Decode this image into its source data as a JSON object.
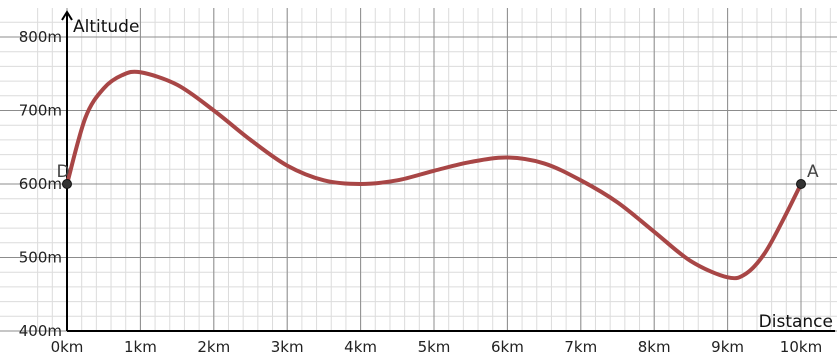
{
  "chart_data": {
    "type": "line",
    "xlabel": "Distance",
    "ylabel": "Altitude",
    "xlim": [
      0,
      10
    ],
    "ylim": [
      400,
      800
    ],
    "x_ticks": [
      0,
      1,
      2,
      3,
      4,
      5,
      6,
      7,
      8,
      9,
      10
    ],
    "x_tick_labels": [
      "0km",
      "1km",
      "2km",
      "3km",
      "4km",
      "5km",
      "6km",
      "7km",
      "8km",
      "9km",
      "10km"
    ],
    "y_ticks": [
      400,
      500,
      600,
      700,
      800
    ],
    "y_tick_labels": [
      "400m",
      "500m",
      "600m",
      "700m",
      "800m"
    ],
    "grid": true,
    "series": [
      {
        "color": "#a84646",
        "x": [
          0,
          0.25,
          0.5,
          0.75,
          1,
          1.5,
          2,
          2.5,
          3,
          3.5,
          4,
          4.5,
          5,
          5.5,
          6,
          6.5,
          7,
          7.5,
          8,
          8.5,
          9,
          9.25,
          9.5,
          9.75,
          10
        ],
        "y": [
          600,
          690,
          730,
          748,
          752,
          735,
          700,
          660,
          625,
          605,
          600,
          605,
          618,
          630,
          636,
          628,
          605,
          575,
          535,
          495,
          473,
          478,
          505,
          550,
          600
        ]
      }
    ],
    "points": [
      {
        "label": "D",
        "x": 0,
        "y": 600
      },
      {
        "label": "A",
        "x": 10,
        "y": 600
      }
    ]
  }
}
